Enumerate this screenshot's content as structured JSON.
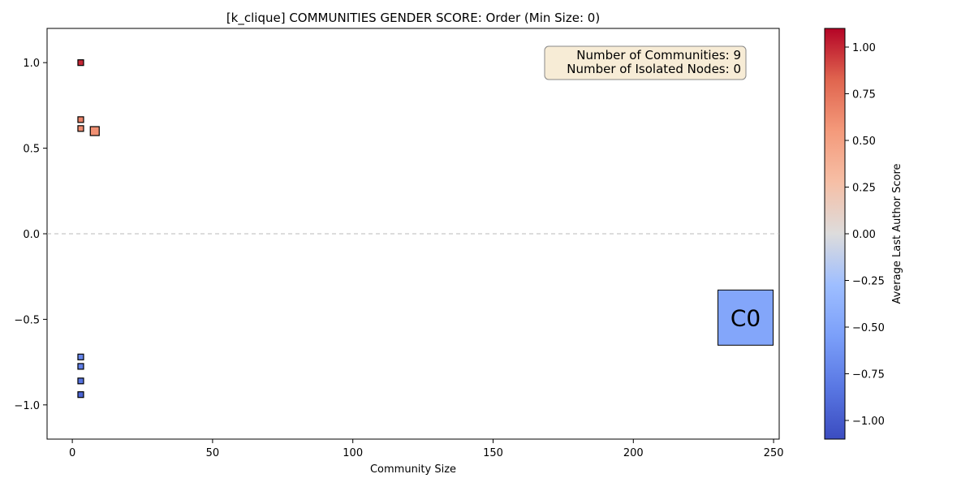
{
  "chart_data": {
    "type": "scatter",
    "title": "[k_clique] COMMUNITIES GENDER SCORE: Order (Min Size: 0)",
    "xlabel": "Community Size",
    "ylabel": "",
    "xlim": [
      -9,
      252
    ],
    "ylim": [
      -1.2,
      1.2
    ],
    "x_ticks": [
      0,
      50,
      100,
      150,
      200,
      250
    ],
    "x_tick_labels": [
      "0",
      "50",
      "100",
      "150",
      "200",
      "250"
    ],
    "y_ticks": [
      -1.0,
      -0.5,
      0.0,
      0.5,
      1.0
    ],
    "y_tick_labels": [
      "−1.0",
      "−0.5",
      "0.0",
      "0.5",
      "1.0"
    ],
    "reference_line": {
      "y": 0,
      "style": "dashed"
    },
    "grid": false,
    "points": [
      {
        "x": 3,
        "y": 1.0,
        "score": 1.0
      },
      {
        "x": 3,
        "y": 0.667,
        "score": 0.667
      },
      {
        "x": 3,
        "y": 0.615,
        "score": 0.615
      },
      {
        "x": 8,
        "y": 0.6,
        "score": 0.6
      },
      {
        "x": 3,
        "y": -0.72,
        "score": -0.72
      },
      {
        "x": 3,
        "y": -0.775,
        "score": -0.775
      },
      {
        "x": 3,
        "y": -0.86,
        "score": -0.86
      },
      {
        "x": 3,
        "y": -0.94,
        "score": -0.94
      }
    ],
    "labeled_community": {
      "label": "C0",
      "x": 240,
      "y": -0.49,
      "score": -0.49
    },
    "info_box": {
      "lines": [
        "Number of Communities: 9",
        "Number of Isolated Nodes: 0"
      ],
      "position": "top-right",
      "background": "#f7ecd6"
    },
    "colorbar": {
      "label": "Average Last Author Score",
      "colormap": "coolwarm",
      "range": [
        -1.1,
        1.1
      ],
      "ticks": [
        1.0,
        0.75,
        0.5,
        0.25,
        0.0,
        -0.25,
        -0.5,
        -0.75,
        -1.0
      ],
      "tick_labels": [
        "1.00",
        "0.75",
        "0.50",
        "0.25",
        "0.00",
        "−0.25",
        "−0.50",
        "−0.75",
        "−1.00"
      ]
    }
  }
}
